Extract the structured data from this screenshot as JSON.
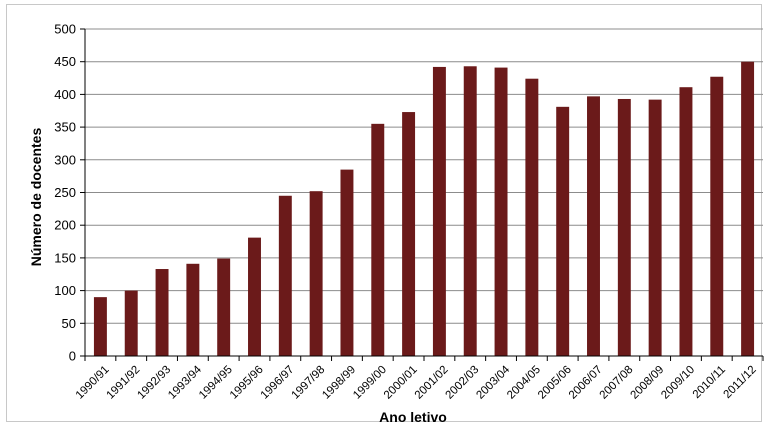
{
  "chart_data": {
    "type": "bar",
    "title": "",
    "xlabel": "Ano letivo",
    "ylabel": "Número de docentes",
    "ylim": [
      0,
      500
    ],
    "yticks": [
      0,
      50,
      100,
      150,
      200,
      250,
      300,
      350,
      400,
      450,
      500
    ],
    "grid": "horizontal",
    "legend": "none",
    "bar_color": "#6b1a1a",
    "grid_color": "#8c8c8c",
    "categories": [
      "1990/91",
      "1991/92",
      "1992/93",
      "1993/94",
      "1994/95",
      "1995/96",
      "1996/97",
      "1997/98",
      "1998/99",
      "1999/00",
      "2000/01",
      "2001/02",
      "2002/03",
      "2003/04",
      "2004/05",
      "2005/06",
      "2006/07",
      "2007/08",
      "2008/09",
      "2009/10",
      "2010/11",
      "2011/12"
    ],
    "values": [
      90,
      100,
      133,
      141,
      149,
      181,
      245,
      252,
      285,
      355,
      373,
      442,
      443,
      441,
      424,
      381,
      397,
      393,
      392,
      411,
      427,
      450
    ]
  }
}
